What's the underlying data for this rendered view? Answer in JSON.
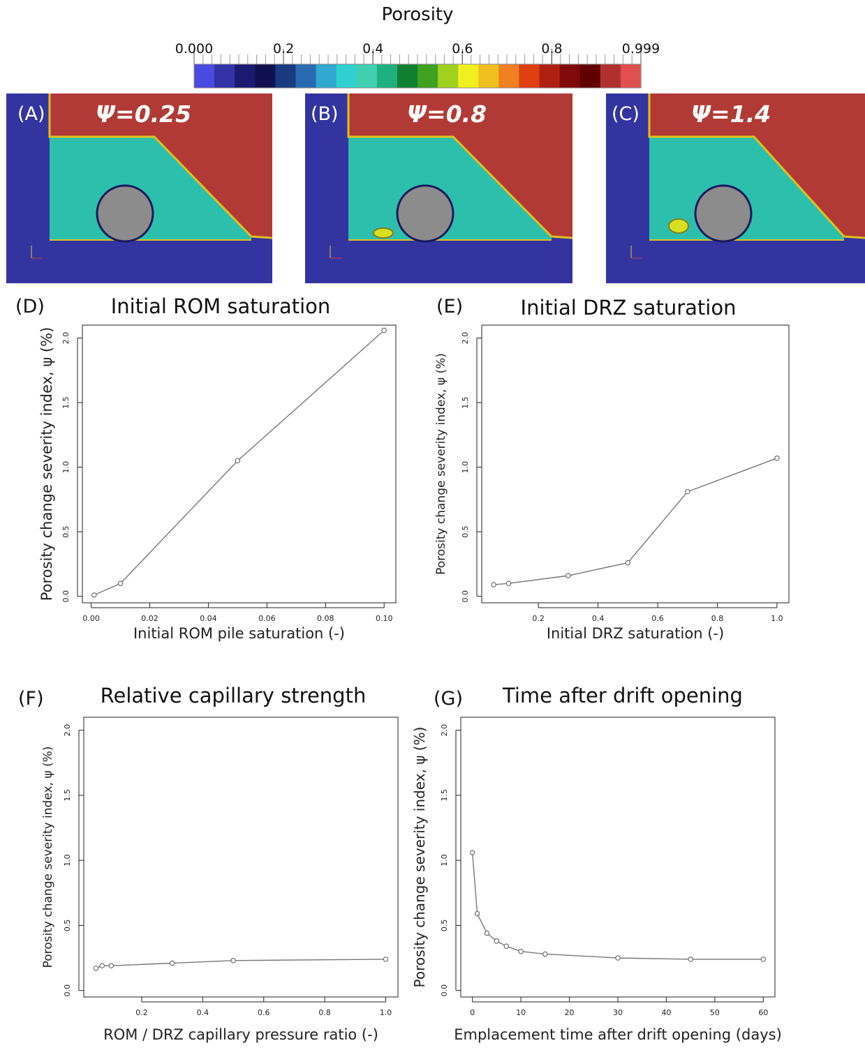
{
  "colorbar": {
    "title": "Porosity",
    "tick_labels": [
      "0.000",
      "0.2",
      "0.4",
      "0.6",
      "0.8",
      "0.999"
    ],
    "range": [
      0,
      0.999
    ],
    "colors": [
      "#4a4ae0",
      "#3333a8",
      "#1a1a70",
      "#101050",
      "#1a3a80",
      "#2a6ab0",
      "#30a8d0",
      "#30d0d0",
      "#40d0b0",
      "#20b080",
      "#108030",
      "#40a020",
      "#a0d020",
      "#f0f020",
      "#f0c020",
      "#f08020",
      "#e04010",
      "#b02010",
      "#800a0a",
      "#600000",
      "#b03030",
      "#e05050"
    ]
  },
  "sim_panels": [
    {
      "letter": "(A)",
      "psi": "Ψ=0.25"
    },
    {
      "letter": "(B)",
      "psi": "Ψ=0.8"
    },
    {
      "letter": "(C)",
      "psi": "Ψ=1.4"
    }
  ],
  "sim_colors": {
    "rock": "#3434a0",
    "fill": "#2cc0ac",
    "void": "#b23a36",
    "drift": "#8c8c8c",
    "edge": "#e0c020"
  },
  "chart_data": [
    {
      "panel": "(D)",
      "type": "line",
      "title": "Initial ROM saturation",
      "xlabel": "Initial ROM pile saturation (-)",
      "ylabel": "Porosity change severity index, ψ (%)",
      "x": [
        0.001,
        0.01,
        0.05,
        0.1
      ],
      "y": [
        0.01,
        0.1,
        1.05,
        2.06
      ],
      "xlim": [
        -0.003,
        0.104
      ],
      "ylim": [
        -0.05,
        2.1
      ],
      "xticks": [
        0.0,
        0.02,
        0.04,
        0.06,
        0.08,
        0.1
      ],
      "xtick_labels": [
        "0.00",
        "0.02",
        "0.04",
        "0.06",
        "0.08",
        "0.10"
      ],
      "yticks": [
        0.0,
        0.5,
        1.0,
        1.5,
        2.0
      ],
      "ytick_labels": [
        "0.0",
        "0.5",
        "1.0",
        "1.5",
        "2.0"
      ],
      "grid": false
    },
    {
      "panel": "(E)",
      "type": "line",
      "title": "Initial DRZ saturation",
      "xlabel": "Initial DRZ saturation (-)",
      "ylabel": "Porosity change severity index, ψ (%)",
      "x": [
        0.05,
        0.1,
        0.3,
        0.5,
        0.7,
        1.0
      ],
      "y": [
        0.09,
        0.1,
        0.16,
        0.26,
        0.81,
        1.07
      ],
      "xlim": [
        0.01,
        1.04
      ],
      "ylim": [
        -0.05,
        2.1
      ],
      "xticks": [
        0.2,
        0.4,
        0.6,
        0.8,
        1.0
      ],
      "xtick_labels": [
        "0.2",
        "0.4",
        "0.6",
        "0.8",
        "1.0"
      ],
      "yticks": [
        0.0,
        0.5,
        1.0,
        1.5,
        2.0
      ],
      "ytick_labels": [
        "0.0",
        "0.5",
        "1.0",
        "1.5",
        "2.0"
      ],
      "grid": false
    },
    {
      "panel": "(F)",
      "type": "line",
      "title": "Relative capillary strength",
      "xlabel": "ROM / DRZ capillary pressure ratio (-)",
      "ylabel": "Porosity change severity index, ψ (%)",
      "x": [
        0.05,
        0.07,
        0.1,
        0.3,
        0.5,
        1.0
      ],
      "y": [
        0.17,
        0.19,
        0.19,
        0.21,
        0.23,
        0.24
      ],
      "xlim": [
        0.01,
        1.04
      ],
      "ylim": [
        -0.05,
        2.1
      ],
      "xticks": [
        0.2,
        0.4,
        0.6,
        0.8,
        1.0
      ],
      "xtick_labels": [
        "0.2",
        "0.4",
        "0.6",
        "0.8",
        "1.0"
      ],
      "yticks": [
        0.0,
        0.5,
        1.0,
        1.5,
        2.0
      ],
      "ytick_labels": [
        "0.0",
        "0.5",
        "1.0",
        "1.5",
        "2.0"
      ],
      "grid": false
    },
    {
      "panel": "(G)",
      "type": "line",
      "title": "Time after drift opening",
      "xlabel": "Emplacement time after drift opening (days)",
      "ylabel": "Porosity change severity index, ψ (%)",
      "x": [
        0,
        1,
        3,
        5,
        7,
        10,
        15,
        30,
        45,
        60
      ],
      "y": [
        1.06,
        0.59,
        0.44,
        0.38,
        0.34,
        0.3,
        0.28,
        0.25,
        0.24,
        0.24
      ],
      "xlim": [
        -2.4,
        62.4
      ],
      "ylim": [
        -0.05,
        2.1
      ],
      "xticks": [
        0,
        10,
        20,
        30,
        40,
        50,
        60
      ],
      "xtick_labels": [
        "0",
        "10",
        "20",
        "30",
        "40",
        "50",
        "60"
      ],
      "yticks": [
        0.0,
        0.5,
        1.0,
        1.5,
        2.0
      ],
      "ytick_labels": [
        "0.0",
        "0.5",
        "1.0",
        "1.5",
        "2.0"
      ],
      "grid": false
    }
  ]
}
